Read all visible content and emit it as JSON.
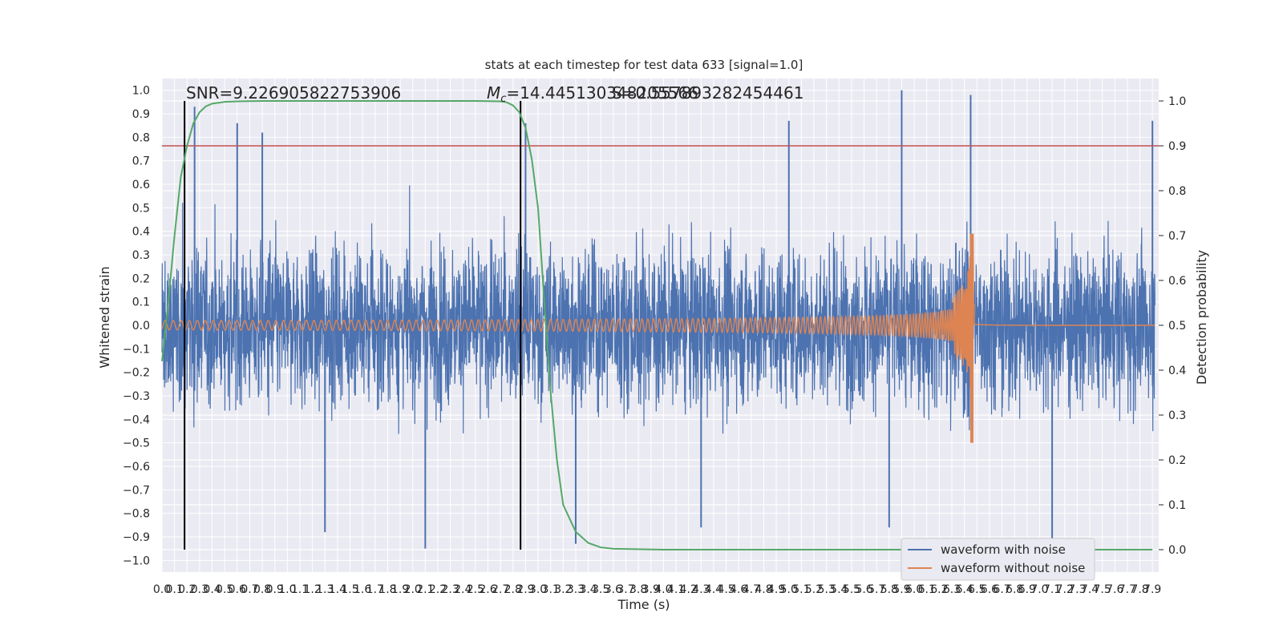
{
  "chart_data": {
    "type": "line",
    "title": "stats at each timestep for test data 633 [signal=1.0]",
    "xlabel": "Time (s)",
    "ylabel": "Whitened strain",
    "y2label": "Detection probability",
    "xlim": [
      0.0,
      7.95
    ],
    "ylim": [
      -1.05,
      1.05
    ],
    "y2lim": [
      -0.05,
      1.05
    ],
    "grid": true,
    "legend_position": "lower-right",
    "x_ticks": [
      "0.0",
      "0.1",
      "0.2",
      "0.3",
      "0.4",
      "0.5",
      "0.6",
      "0.7",
      "0.8",
      "0.9",
      "1.0",
      "1.1",
      "1.2",
      "1.3",
      "1.4",
      "1.5",
      "1.6",
      "1.7",
      "1.8",
      "1.9",
      "2.0",
      "2.1",
      "2.2",
      "2.3",
      "2.4",
      "2.5",
      "2.6",
      "2.7",
      "2.8",
      "2.9",
      "3.0",
      "3.1",
      "3.2",
      "3.3",
      "3.4",
      "3.5",
      "3.6",
      "3.7",
      "3.8",
      "3.9",
      "4.0",
      "4.1",
      "4.2",
      "4.3",
      "4.4",
      "4.5",
      "4.6",
      "4.7",
      "4.8",
      "4.9",
      "5.0",
      "5.1",
      "5.2",
      "5.3",
      "5.4",
      "5.5",
      "5.6",
      "5.7",
      "5.8",
      "5.9",
      "6.0",
      "6.1",
      "6.2",
      "6.3",
      "6.4",
      "6.5",
      "6.6",
      "6.7",
      "6.8",
      "6.9",
      "7.0",
      "7.1",
      "7.2",
      "7.3",
      "7.4",
      "7.5",
      "7.6",
      "7.7",
      "7.8",
      "7.9"
    ],
    "y_ticks": [
      "1.0",
      "0.9",
      "0.8",
      "0.7",
      "0.6",
      "0.5",
      "0.4",
      "0.3",
      "0.2",
      "0.1",
      "0.0",
      "−0.1",
      "−0.2",
      "−0.3",
      "−0.4",
      "−0.5",
      "−0.6",
      "−0.7",
      "−0.8",
      "−0.9",
      "−1.0"
    ],
    "y_tick_values": [
      1.0,
      0.9,
      0.8,
      0.7,
      0.6,
      0.5,
      0.4,
      0.3,
      0.2,
      0.1,
      0.0,
      -0.1,
      -0.2,
      -0.3,
      -0.4,
      -0.5,
      -0.6,
      -0.7,
      -0.8,
      -0.9,
      -1.0
    ],
    "y2_ticks": [
      "1.0",
      "0.9",
      "0.8",
      "0.7",
      "0.6",
      "0.5",
      "0.4",
      "0.3",
      "0.2",
      "0.1",
      "0.0"
    ],
    "y2_tick_values": [
      1.0,
      0.9,
      0.8,
      0.7,
      0.6,
      0.5,
      0.4,
      0.3,
      0.2,
      0.1,
      0.0
    ],
    "annotations": {
      "snr": "SNR=9.226905822753906",
      "mc_prefix": "M",
      "mc_subscript": "c",
      "mc_value": "=14.445130348205566",
      "overlap_text": "S=0.5578932824544",
      "overlap_suffix": "61"
    },
    "vertical_markers_x": [
      0.18,
      2.86
    ],
    "threshold_y2": 0.9,
    "series": [
      {
        "name": "waveform with noise",
        "color": "#4c72b0",
        "description_envelope": {
          "typical_amplitude": 0.42,
          "max_peaks": [
            [
              0.26,
              0.93
            ],
            [
              0.6,
              0.86
            ],
            [
              0.8,
              0.82
            ],
            [
              2.9,
              0.86
            ],
            [
              5.0,
              0.87
            ],
            [
              5.9,
              1.0
            ],
            [
              6.45,
              0.98
            ],
            [
              7.9,
              0.87
            ],
            [
              1.3,
              -0.88
            ],
            [
              2.1,
              -0.95
            ],
            [
              3.3,
              -0.93
            ],
            [
              4.3,
              -0.86
            ],
            [
              5.8,
              -0.86
            ],
            [
              7.1,
              -1.0
            ]
          ]
        }
      },
      {
        "name": "waveform without noise",
        "color": "#dd8452",
        "chirp": {
          "start": 0.0,
          "merger_time": 6.46,
          "initial_amplitude": 0.02,
          "merger_peak": 0.39,
          "merger_trough": -0.5
        }
      },
      {
        "name": "detection probability",
        "color": "#55a868",
        "axis": "right",
        "x": [
          0.0,
          0.05,
          0.1,
          0.15,
          0.2,
          0.25,
          0.3,
          0.35,
          0.4,
          0.5,
          0.6,
          0.8,
          1.0,
          2.0,
          2.5,
          2.7,
          2.75,
          2.8,
          2.85,
          2.9,
          2.95,
          3.0,
          3.05,
          3.1,
          3.15,
          3.2,
          3.3,
          3.4,
          3.5,
          3.6,
          4.0,
          5.0,
          6.0,
          7.0,
          7.9
        ],
        "values": [
          0.42,
          0.55,
          0.7,
          0.83,
          0.9,
          0.95,
          0.975,
          0.988,
          0.994,
          0.998,
          0.999,
          1.0,
          1.0,
          1.0,
          1.0,
          0.999,
          0.997,
          0.99,
          0.975,
          0.94,
          0.87,
          0.76,
          0.55,
          0.35,
          0.2,
          0.1,
          0.04,
          0.015,
          0.005,
          0.002,
          0.0,
          0.0,
          0.0,
          0.0,
          0.0
        ]
      }
    ]
  }
}
